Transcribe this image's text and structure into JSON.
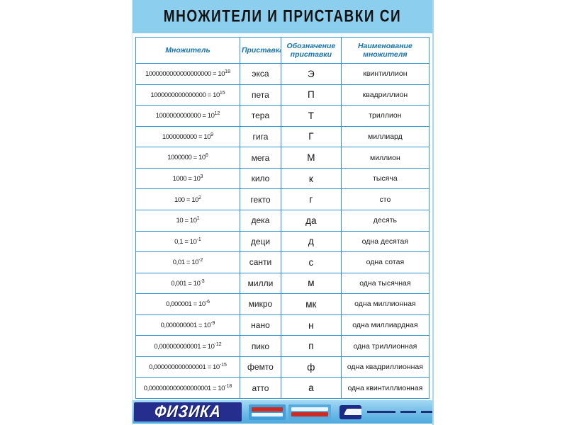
{
  "poster": {
    "title": "МНОЖИТЕЛИ И ПРИСТАВКИ СИ",
    "colors": {
      "title_band": "#8cceed",
      "table_border": "#2e96cc",
      "header_text": "#1473b5",
      "footer_navy": "#252e8c",
      "footer_blue": "#6fbbe7"
    },
    "table": {
      "headers": [
        "Множитель",
        "Приставка",
        "Обозначение приставки",
        "Наименование множителя"
      ],
      "rows": [
        {
          "multiplier": "1000000000000000000",
          "exponent": "18",
          "prefix": "экса",
          "symbol": "Э",
          "name": "квинтиллион"
        },
        {
          "multiplier": "1000000000000000",
          "exponent": "15",
          "prefix": "пета",
          "symbol": "П",
          "name": "квадриллион"
        },
        {
          "multiplier": "1000000000000",
          "exponent": "12",
          "prefix": "тера",
          "symbol": "Т",
          "name": "триллион"
        },
        {
          "multiplier": "1000000000",
          "exponent": "9",
          "prefix": "гига",
          "symbol": "Г",
          "name": "миллиард"
        },
        {
          "multiplier": "1000000",
          "exponent": "6",
          "prefix": "мега",
          "symbol": "М",
          "name": "миллион"
        },
        {
          "multiplier": "1000",
          "exponent": "3",
          "prefix": "кило",
          "symbol": "к",
          "name": "тысяча"
        },
        {
          "multiplier": "100",
          "exponent": "2",
          "prefix": "гекто",
          "symbol": "г",
          "name": "сто"
        },
        {
          "multiplier": "10",
          "exponent": "1",
          "prefix": "дека",
          "symbol": "да",
          "name": "десять"
        },
        {
          "multiplier": "0,1",
          "exponent": "-1",
          "prefix": "деци",
          "symbol": "д",
          "name": "одна десятая"
        },
        {
          "multiplier": "0,01",
          "exponent": "-2",
          "prefix": "санти",
          "symbol": "с",
          "name": "одна сотая"
        },
        {
          "multiplier": "0,001",
          "exponent": "-3",
          "prefix": "милли",
          "symbol": "м",
          "name": "одна тысячная"
        },
        {
          "multiplier": "0,000001",
          "exponent": "-6",
          "prefix": "микро",
          "symbol": "мк",
          "name": "одна миллионная"
        },
        {
          "multiplier": "0,000000001",
          "exponent": "-9",
          "prefix": "нано",
          "symbol": "н",
          "name": "одна миллиардная"
        },
        {
          "multiplier": "0,000000000001",
          "exponent": "-12",
          "prefix": "пико",
          "symbol": "п",
          "name": "одна триллионная"
        },
        {
          "multiplier": "0,000000000000001",
          "exponent": "-15",
          "prefix": "фемто",
          "symbol": "ф",
          "name": "одна квадриллионная"
        },
        {
          "multiplier": "0,000000000000000001",
          "exponent": "-18",
          "prefix": "атто",
          "symbol": "а",
          "name": "одна квинтиллионная"
        }
      ]
    },
    "footer": {
      "brand": "ФИЗИКА"
    }
  }
}
